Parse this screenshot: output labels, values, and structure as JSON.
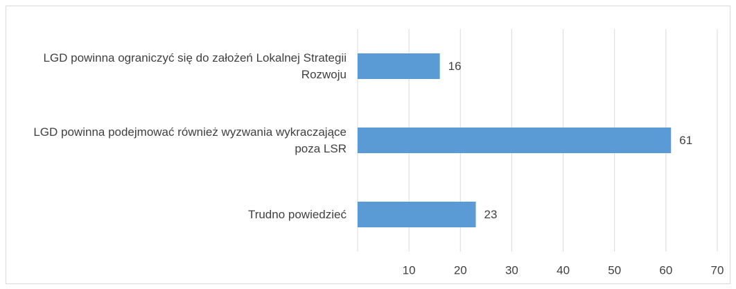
{
  "chart_data": {
    "type": "bar",
    "orientation": "horizontal",
    "categories": [
      "LGD powinna ograniczyć się do założeń Lokalnej Strategii Rozwoju",
      "LGD powinna podejmować również wyzwania wykraczające poza LSR",
      "Trudno powiedzieć"
    ],
    "values": [
      16,
      61,
      23
    ],
    "color": "#5b9bd5",
    "xlim": [
      0,
      70
    ],
    "xticks": [
      10,
      20,
      30,
      40,
      50,
      60,
      70
    ],
    "grid": true
  }
}
